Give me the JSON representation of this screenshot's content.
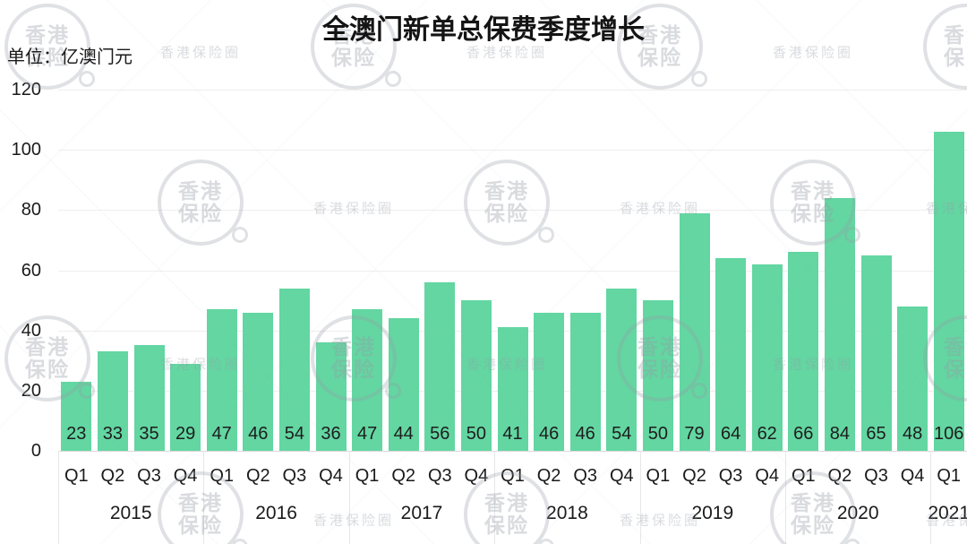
{
  "title": "全澳门新单总保费季度增长",
  "unit_label": "单位：亿澳门元",
  "watermark": {
    "badge_line1": "香港",
    "badge_line2": "保险",
    "ribbon_text": "香港保险圈"
  },
  "chart_data": {
    "type": "bar",
    "title": "全澳门新单总保费季度增长",
    "xlabel": "",
    "ylabel": "亿澳门元",
    "ylim": [
      0,
      120
    ],
    "yticks": [
      0,
      20,
      40,
      60,
      80,
      100,
      120
    ],
    "grid": true,
    "legend": false,
    "bar_color": "#63d6a2",
    "groups": [
      {
        "year": "2015",
        "quarters": [
          "Q1",
          "Q2",
          "Q3",
          "Q4"
        ],
        "values": [
          23,
          33,
          35,
          29
        ]
      },
      {
        "year": "2016",
        "quarters": [
          "Q1",
          "Q2",
          "Q3",
          "Q4"
        ],
        "values": [
          47,
          46,
          54,
          36
        ]
      },
      {
        "year": "2017",
        "quarters": [
          "Q1",
          "Q2",
          "Q3",
          "Q4"
        ],
        "values": [
          47,
          44,
          56,
          50
        ]
      },
      {
        "year": "2018",
        "quarters": [
          "Q1",
          "Q2",
          "Q3",
          "Q4"
        ],
        "values": [
          41,
          46,
          46,
          54
        ]
      },
      {
        "year": "2019",
        "quarters": [
          "Q1",
          "Q2",
          "Q3",
          "Q4"
        ],
        "values": [
          50,
          79,
          64,
          62
        ]
      },
      {
        "year": "2020",
        "quarters": [
          "Q1",
          "Q2",
          "Q3",
          "Q4"
        ],
        "values": [
          66,
          84,
          65,
          48
        ]
      },
      {
        "year": "2021",
        "quarters": [
          "Q1"
        ],
        "values": [
          106
        ]
      }
    ]
  }
}
